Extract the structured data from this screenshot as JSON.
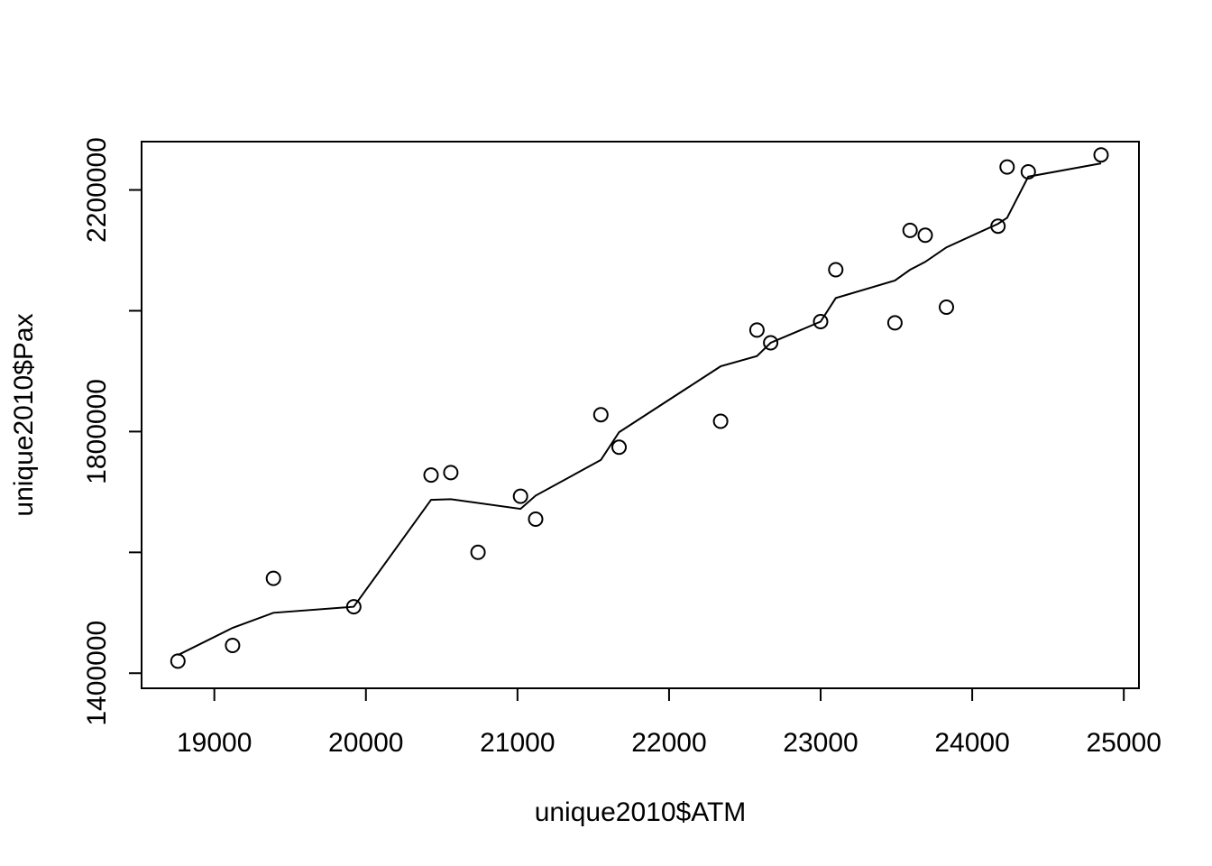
{
  "chart_data": {
    "type": "scatter",
    "title": "",
    "xlabel": "unique2010$ATM",
    "ylabel": "unique2010$Pax",
    "xlim": [
      18520,
      25100
    ],
    "ylim": [
      1375000,
      2280000
    ],
    "x_ticks": [
      19000,
      20000,
      21000,
      22000,
      23000,
      24000,
      25000
    ],
    "y_ticks": [
      1400000,
      1800000,
      2200000
    ],
    "y_minor_ticks": [
      1600000,
      2000000
    ],
    "grid": false,
    "legend": "none",
    "points": {
      "x": [
        18760,
        19120,
        19390,
        19920,
        20430,
        20560,
        20740,
        21020,
        21120,
        21550,
        21670,
        22340,
        22580,
        22670,
        23000,
        23100,
        23490,
        23590,
        23690,
        23830,
        24170,
        24230,
        24370,
        24850
      ],
      "y": [
        1420000,
        1446000,
        1557000,
        1510000,
        1728000,
        1732000,
        1600000,
        1693000,
        1655000,
        1828000,
        1774000,
        1817000,
        1968000,
        1947000,
        1982000,
        2068000,
        1980000,
        2133000,
        2125000,
        2006000,
        2140000,
        2238000,
        2230000,
        2258000
      ]
    },
    "smooth_line": {
      "x": [
        18760,
        19120,
        19390,
        19920,
        20430,
        20560,
        21020,
        21120,
        21550,
        21670,
        22340,
        22580,
        22670,
        23000,
        23100,
        23490,
        23590,
        23690,
        23830,
        24170,
        24230,
        24370,
        24850
      ],
      "y": [
        1430000,
        1475000,
        1500000,
        1510000,
        1687000,
        1688000,
        1672000,
        1694000,
        1753000,
        1799000,
        1908000,
        1925000,
        1947000,
        1982000,
        2021000,
        2050000,
        2068000,
        2081000,
        2105000,
        2144000,
        2154000,
        2222000,
        2244000
      ]
    }
  }
}
